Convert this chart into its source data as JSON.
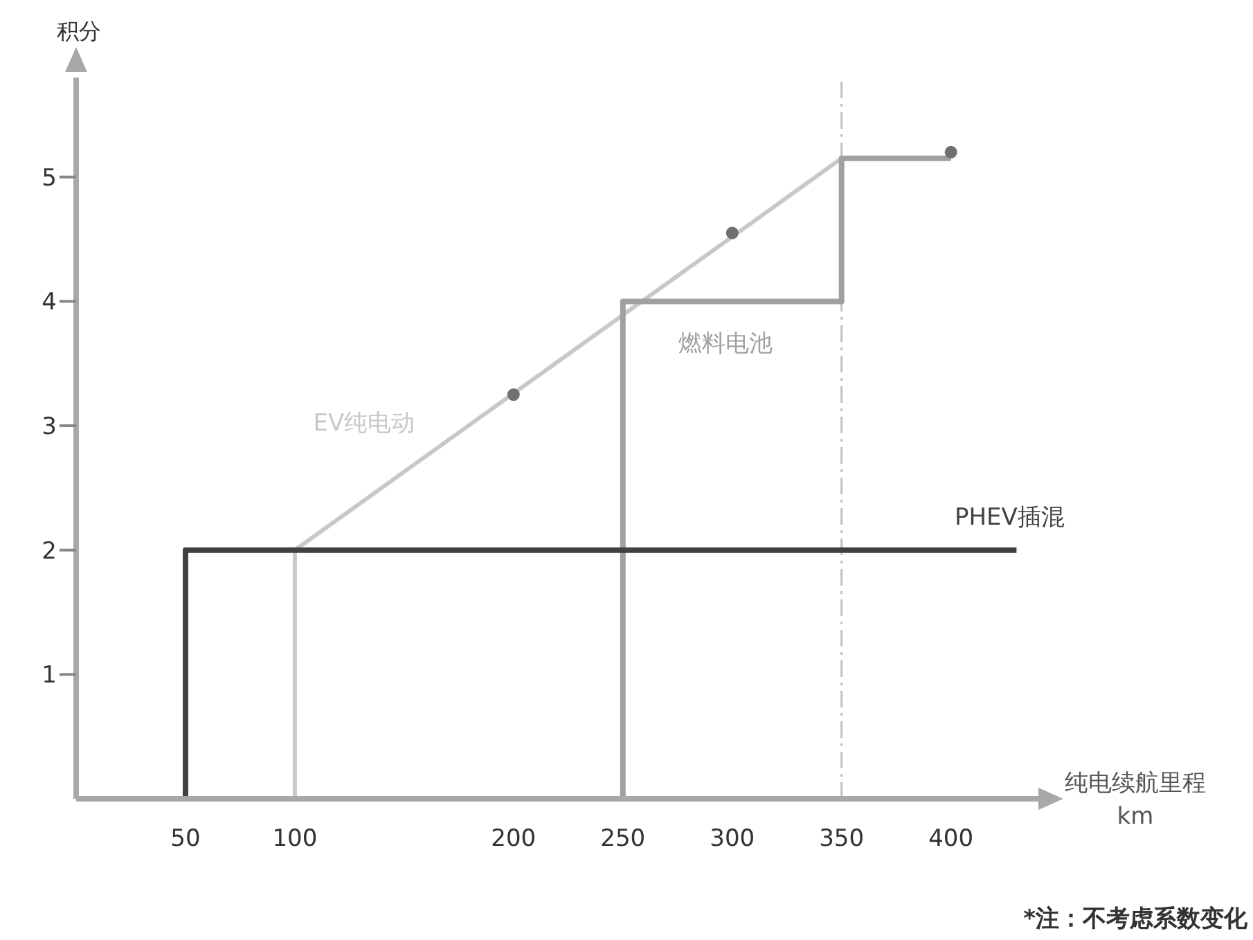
{
  "chart_data": {
    "type": "line",
    "xlabel": "纯电续航里程 km",
    "ylabel": "积分",
    "xlim": [
      0,
      440
    ],
    "xticks": [
      50,
      100,
      200,
      250,
      300,
      350,
      400
    ],
    "ylim": [
      0,
      5.8
    ],
    "yticks": [
      1,
      2,
      3,
      4,
      5
    ],
    "series": [
      {
        "name": "EV纯电动",
        "color": "#c8c8c8",
        "x": [
          0,
          100,
          100,
          350,
          400
        ],
        "values": [
          0,
          0,
          2,
          5.15,
          5.15
        ]
      },
      {
        "name": "燃料电池",
        "type": "step",
        "color": "#a0a0a0",
        "x": [
          0,
          250,
          350,
          400
        ],
        "values": [
          0,
          4,
          5.15,
          5.15
        ]
      },
      {
        "name": "PHEV插混",
        "type": "step",
        "color": "#404040",
        "x": [
          0,
          50,
          430
        ],
        "values": [
          0,
          2,
          2
        ]
      },
      {
        "type": "scatter",
        "color": "#707070",
        "marker": "circle",
        "x": [
          200,
          300,
          400
        ],
        "values": [
          3.25,
          4.55,
          5.2
        ]
      }
    ],
    "ref_lines": [
      {
        "axis": "x",
        "value": 350,
        "color": "#c0c0c0",
        "line_style": "dashed"
      }
    ],
    "annotations": [
      "*注：不考虑系数变化"
    ]
  }
}
